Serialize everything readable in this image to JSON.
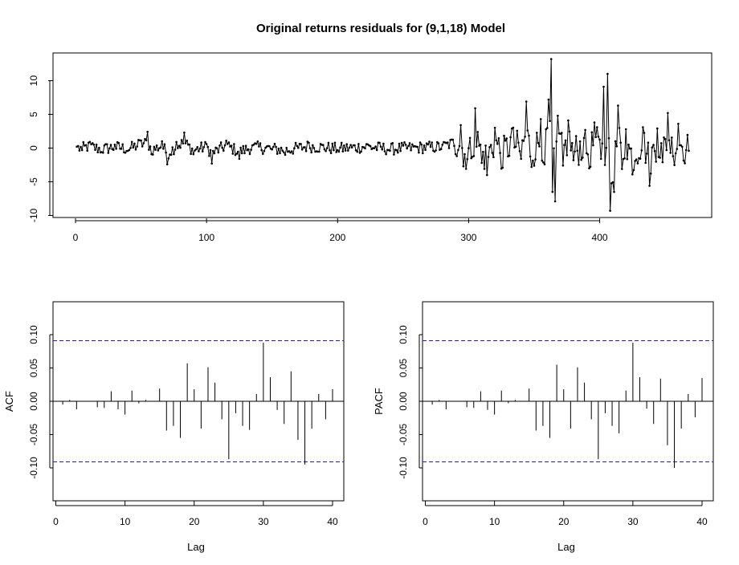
{
  "figure": {
    "title": "Original returns residuals for (9,1,18) Model"
  },
  "chart_data": [
    {
      "type": "line",
      "name": "residuals",
      "xlim": [
        0,
        470
      ],
      "ylim": [
        -10,
        13.5
      ],
      "xticks": [
        0,
        100,
        200,
        300,
        400
      ],
      "yticks": [
        -10,
        -5,
        0,
        5,
        10
      ],
      "xlabel": "",
      "ylabel": "",
      "n": 468,
      "anchors": [
        [
          1,
          0.2
        ],
        [
          5,
          -0.3
        ],
        [
          10,
          0.8
        ],
        [
          20,
          -0.6
        ],
        [
          30,
          0.5
        ],
        [
          40,
          -0.4
        ],
        [
          48,
          1.2
        ],
        [
          55,
          2.4
        ],
        [
          58,
          -0.9
        ],
        [
          66,
          1.0
        ],
        [
          70,
          -2.4
        ],
        [
          77,
          0.9
        ],
        [
          83,
          2.3
        ],
        [
          90,
          -0.9
        ],
        [
          100,
          0.6
        ],
        [
          104,
          -2.3
        ],
        [
          115,
          1.1
        ],
        [
          125,
          -1.6
        ],
        [
          135,
          0.4
        ],
        [
          150,
          -0.2
        ],
        [
          160,
          -1.0
        ],
        [
          178,
          0.8
        ],
        [
          200,
          -0.3
        ],
        [
          222,
          0.6
        ],
        [
          240,
          -0.4
        ],
        [
          260,
          0.2
        ],
        [
          280,
          0.5
        ],
        [
          294,
          3.4
        ],
        [
          296,
          -2.7
        ],
        [
          302,
          -1.5
        ],
        [
          305,
          5.9
        ],
        [
          310,
          -2.2
        ],
        [
          314,
          -4.0
        ],
        [
          320,
          3.0
        ],
        [
          326,
          -2.9
        ],
        [
          333,
          2.9
        ],
        [
          340,
          -1.6
        ],
        [
          344,
          6.9
        ],
        [
          348,
          -2.8
        ],
        [
          355,
          4.3
        ],
        [
          358,
          -2.4
        ],
        [
          361,
          7.2
        ],
        [
          363,
          13.2
        ],
        [
          364,
          -6.5
        ],
        [
          366,
          -7.9
        ],
        [
          368,
          4.8
        ],
        [
          372,
          -2.6
        ],
        [
          376,
          4.1
        ],
        [
          380,
          -1.8
        ],
        [
          388,
          1.5
        ],
        [
          392,
          -3.0
        ],
        [
          396,
          3.8
        ],
        [
          401,
          -1.6
        ],
        [
          403,
          9.1
        ],
        [
          404,
          -2.5
        ],
        [
          406,
          11.0
        ],
        [
          408,
          -9.3
        ],
        [
          411,
          -6.5
        ],
        [
          414,
          6.3
        ],
        [
          417,
          -3.1
        ],
        [
          420,
          2.8
        ],
        [
          425,
          -3.9
        ],
        [
          433,
          3.1
        ],
        [
          438,
          -5.6
        ],
        [
          444,
          2.9
        ],
        [
          448,
          -2.1
        ],
        [
          452,
          5.2
        ],
        [
          456,
          -1.2
        ],
        [
          460,
          3.6
        ],
        [
          466,
          -0.3
        ],
        [
          468,
          -0.4
        ]
      ]
    },
    {
      "type": "bar",
      "name": "ACF",
      "xlabel": "Lag",
      "ylabel": "ACF",
      "xlim": [
        0,
        40
      ],
      "ylim": [
        -0.15,
        0.15
      ],
      "xticks": [
        0,
        10,
        20,
        30,
        40
      ],
      "yticks": [
        -0.1,
        -0.05,
        0.0,
        0.05,
        0.1
      ],
      "ytick_labels": [
        "-0.10",
        "-0.05",
        "0.00",
        "0.05",
        "0.10"
      ],
      "ci": 0.091,
      "lags": [
        1,
        2,
        3,
        4,
        5,
        6,
        7,
        8,
        9,
        10,
        11,
        12,
        13,
        14,
        15,
        16,
        17,
        18,
        19,
        20,
        21,
        22,
        23,
        24,
        25,
        26,
        27,
        28,
        29,
        30,
        31,
        32,
        33,
        34,
        35,
        36,
        37,
        38,
        39,
        40
      ],
      "values": [
        -0.005,
        0.002,
        -0.012,
        0.0,
        0.0,
        -0.009,
        -0.01,
        0.015,
        -0.012,
        -0.02,
        0.016,
        -0.003,
        0.002,
        0.0,
        0.019,
        -0.044,
        -0.037,
        -0.055,
        0.057,
        0.018,
        -0.041,
        0.051,
        0.028,
        -0.027,
        -0.087,
        -0.018,
        -0.037,
        -0.043,
        0.011,
        0.088,
        0.036,
        -0.013,
        -0.034,
        0.045,
        -0.058,
        -0.095,
        -0.041,
        0.011,
        -0.027,
        0.018
      ]
    },
    {
      "type": "bar",
      "name": "PACF",
      "xlabel": "Lag",
      "ylabel": "PACF",
      "xlim": [
        0,
        40
      ],
      "ylim": [
        -0.15,
        0.15
      ],
      "xticks": [
        0,
        10,
        20,
        30,
        40
      ],
      "yticks": [
        -0.1,
        -0.05,
        0.0,
        0.05,
        0.1
      ],
      "ytick_labels": [
        "-0.10",
        "-0.05",
        "0.00",
        "0.05",
        "0.10"
      ],
      "ci": 0.091,
      "lags": [
        1,
        2,
        3,
        4,
        5,
        6,
        7,
        8,
        9,
        10,
        11,
        12,
        13,
        14,
        15,
        16,
        17,
        18,
        19,
        20,
        21,
        22,
        23,
        24,
        25,
        26,
        27,
        28,
        29,
        30,
        31,
        32,
        33,
        34,
        35,
        36,
        37,
        38,
        39,
        40
      ],
      "values": [
        -0.005,
        0.002,
        -0.012,
        0.0,
        0.0,
        -0.009,
        -0.01,
        0.015,
        -0.013,
        -0.02,
        0.016,
        -0.003,
        0.002,
        0.0,
        0.019,
        -0.044,
        -0.037,
        -0.055,
        0.055,
        0.018,
        -0.041,
        0.051,
        0.028,
        -0.027,
        -0.087,
        -0.018,
        -0.037,
        -0.048,
        0.016,
        0.088,
        0.036,
        -0.011,
        -0.034,
        0.034,
        -0.066,
        -0.1,
        -0.041,
        0.011,
        -0.024,
        0.035
      ]
    }
  ],
  "colors": {
    "line": "#000000",
    "ci_line": "#1f1fb4",
    "axis": "#000000"
  }
}
